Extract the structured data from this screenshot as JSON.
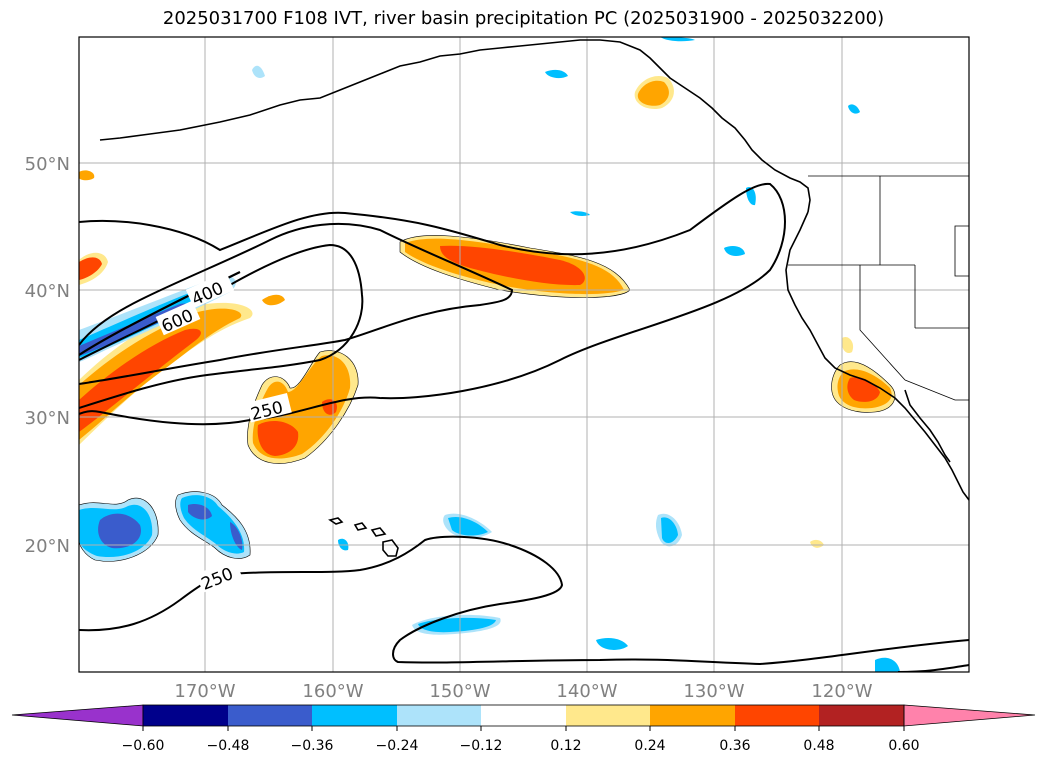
{
  "title": "2025031700 F108 IVT, river basin precipitation PC (2025031900 - 2025032200)",
  "map": {
    "lat_labels": [
      "50°N",
      "40°N",
      "30°N",
      "20°N"
    ],
    "lon_labels": [
      "170°W",
      "160°W",
      "150°W",
      "140°W",
      "130°W",
      "120°W"
    ],
    "ivt_contour_labels": [
      "400",
      "600",
      "250",
      "250"
    ]
  },
  "colorbar": {
    "ticks": [
      "−0.60",
      "−0.48",
      "−0.36",
      "−0.24",
      "−0.12",
      "0.12",
      "0.24",
      "0.36",
      "0.48",
      "0.60"
    ],
    "colors": {
      "under": "#9932CC",
      "bins": [
        "#00008B",
        "#3A5CCC",
        "#00BFFF",
        "#ADE3FA",
        "#FFFFFF",
        "#FFE88C",
        "#FFA500",
        "#FF4500",
        "#B22222"
      ],
      "over": "#FF82AB"
    }
  }
}
